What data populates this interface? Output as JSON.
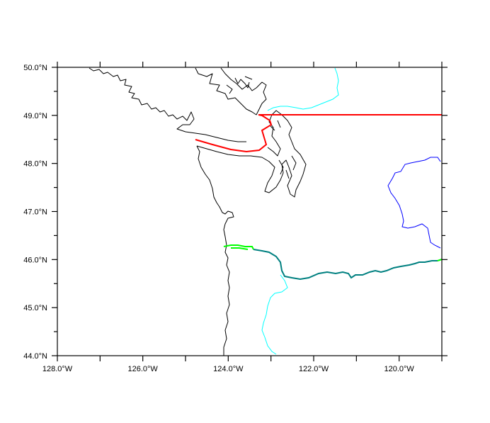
{
  "map": {
    "lon_ticks": [
      {
        "lon": -128,
        "label": "128.0°W"
      },
      {
        "lon": -126,
        "label": "126.0°W"
      },
      {
        "lon": -124,
        "label": "124.0°W"
      },
      {
        "lon": -122,
        "label": "122.0°W"
      },
      {
        "lon": -120,
        "label": "120.0°W"
      }
    ],
    "lat_ticks": [
      {
        "lat": 50,
        "label": "50.0°N"
      },
      {
        "lat": 49,
        "label": "49.0°N"
      },
      {
        "lat": 48,
        "label": "48.0°N"
      },
      {
        "lat": 47,
        "label": "47.0°N"
      },
      {
        "lat": 46,
        "label": "46.0°N"
      },
      {
        "lat": 45,
        "label": "45.0°N"
      },
      {
        "lat": 44,
        "label": "44.0°N"
      }
    ],
    "extent": {
      "lon_min": -128,
      "lon_max": -119,
      "lat_min": 44,
      "lat_max": 50
    },
    "colors": {
      "boundary": "#ff0000",
      "river_cyan": "#00ffff",
      "river_blue": "#0000ff",
      "river_teal": "#008080",
      "river_green": "#00ff00",
      "coastline": "#000000"
    }
  }
}
